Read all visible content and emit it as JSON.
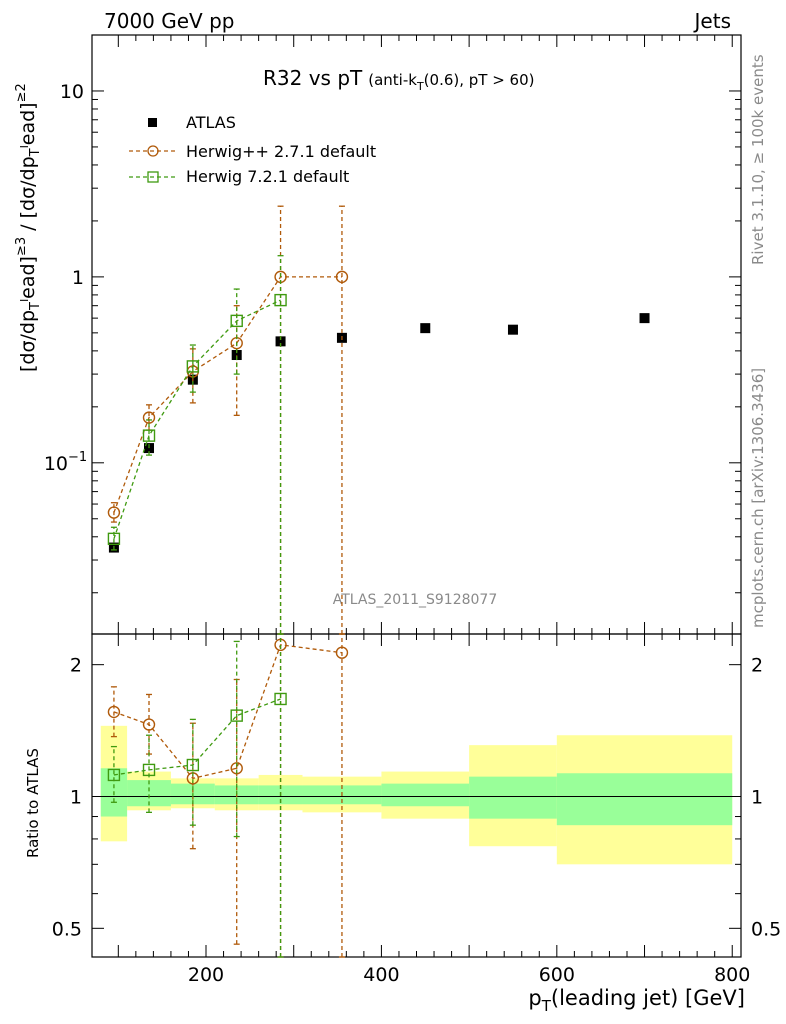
{
  "header": {
    "left": "7000 GeV pp",
    "right": "Jets"
  },
  "title": {
    "main": "R32 vs pT",
    "sub_prefix": "(anti-k",
    "sub_sub": "T",
    "sub_suffix": "(0.6), pT > 60)"
  },
  "side_labels": {
    "rivet": "Rivet 3.1.10, ≥ 100k events",
    "mcplots": "mcplots.cern.ch [arXiv:1306.3436]"
  },
  "analysis_id": "ATLAS_2011_S9128077",
  "ylabel_top": "[dσ/dp_Tˡead]^≥3 / [dσ/dp_Tˡead]^≥2",
  "ylabel_bottom": "Ratio to ATLAS",
  "xlabel": {
    "main": "p",
    "sub": "T",
    "suffix": "(leading jet) [GeV]"
  },
  "colors": {
    "atlas": "#000000",
    "herwigpp": "#b05a0a",
    "herwig7": "#3f9a10",
    "band_inner": "#99ff99",
    "band_outer": "#ffff99"
  },
  "chart_data": [
    {
      "type": "scatter",
      "panel": "main",
      "xlim": [
        70,
        810
      ],
      "ylim": [
        0.012,
        20
      ],
      "yscale": "log",
      "yticks": [
        {
          "v": 0.1,
          "base": "10",
          "exp": "−1"
        },
        {
          "v": 1,
          "label": "1"
        },
        {
          "v": 10,
          "label": "10"
        }
      ],
      "series": [
        {
          "name": "ATLAS",
          "style": "square-filled",
          "x": [
            95,
            135,
            185,
            235,
            285,
            355,
            450,
            550,
            700
          ],
          "xlo": [
            80,
            110,
            160,
            210,
            260,
            310,
            400,
            500,
            600
          ],
          "xhi": [
            110,
            160,
            210,
            260,
            310,
            400,
            500,
            600,
            800
          ],
          "y": [
            0.035,
            0.12,
            0.28,
            0.38,
            0.45,
            0.47,
            0.53,
            0.52,
            0.6
          ]
        },
        {
          "name": "Herwig++ 2.7.1 default",
          "style": "circle-open",
          "x": [
            95,
            135,
            185,
            235,
            285,
            355
          ],
          "y": [
            0.054,
            0.175,
            0.31,
            0.44,
            1.0,
            1.0
          ],
          "ylo": [
            0.048,
            0.15,
            0.21,
            0.18,
            0.0005,
            0.0005
          ],
          "yhi": [
            0.061,
            0.205,
            0.41,
            0.7,
            2.4,
            2.4
          ]
        },
        {
          "name": "Herwig 7.2.1 default",
          "style": "square-open",
          "x": [
            95,
            135,
            185,
            235,
            285
          ],
          "y": [
            0.039,
            0.14,
            0.33,
            0.58,
            0.75
          ],
          "ylo": [
            0.034,
            0.11,
            0.24,
            0.3,
            0.0005
          ],
          "yhi": [
            0.045,
            0.17,
            0.43,
            0.86,
            1.3
          ]
        }
      ]
    },
    {
      "type": "scatter",
      "panel": "ratio",
      "xlim": [
        70,
        810
      ],
      "ylim": [
        0.43,
        2.35
      ],
      "yscale": "log",
      "yticks": [
        0.5,
        1,
        2
      ],
      "xticks": [
        200,
        400,
        600,
        800
      ],
      "bands": [
        {
          "xlo": 80,
          "xhi": 110,
          "inner": [
            0.9,
            1.16
          ],
          "outer": [
            0.79,
            1.45
          ]
        },
        {
          "xlo": 110,
          "xhi": 160,
          "inner": [
            0.95,
            1.09
          ],
          "outer": [
            0.93,
            1.14
          ]
        },
        {
          "xlo": 160,
          "xhi": 210,
          "inner": [
            0.96,
            1.07
          ],
          "outer": [
            0.94,
            1.1
          ]
        },
        {
          "xlo": 210,
          "xhi": 260,
          "inner": [
            0.96,
            1.06
          ],
          "outer": [
            0.93,
            1.1
          ]
        },
        {
          "xlo": 260,
          "xhi": 310,
          "inner": [
            0.96,
            1.06
          ],
          "outer": [
            0.93,
            1.12
          ]
        },
        {
          "xlo": 310,
          "xhi": 400,
          "inner": [
            0.96,
            1.06
          ],
          "outer": [
            0.92,
            1.11
          ]
        },
        {
          "xlo": 400,
          "xhi": 500,
          "inner": [
            0.95,
            1.07
          ],
          "outer": [
            0.89,
            1.14
          ]
        },
        {
          "xlo": 500,
          "xhi": 600,
          "inner": [
            0.89,
            1.11
          ],
          "outer": [
            0.77,
            1.31
          ]
        },
        {
          "xlo": 600,
          "xhi": 800,
          "inner": [
            0.86,
            1.13
          ],
          "outer": [
            0.7,
            1.38
          ]
        }
      ],
      "series": [
        {
          "name": "Herwig++ 2.7.1 default",
          "style": "circle-open",
          "x": [
            95,
            135,
            185,
            235,
            285,
            355
          ],
          "y": [
            1.56,
            1.46,
            1.1,
            1.16,
            2.22,
            2.13
          ],
          "ylo": [
            1.37,
            1.25,
            0.76,
            0.46,
            0.4,
            0.4
          ],
          "yhi": [
            1.78,
            1.71,
            1.47,
            1.85,
            2.4,
            2.4
          ]
        },
        {
          "name": "Herwig 7.2.1 default",
          "style": "square-open",
          "x": [
            95,
            135,
            185,
            235,
            285
          ],
          "y": [
            1.12,
            1.15,
            1.18,
            1.53,
            1.67
          ],
          "ylo": [
            0.97,
            0.92,
            0.86,
            0.81,
            0.4
          ],
          "yhi": [
            1.3,
            1.38,
            1.5,
            2.26,
            2.4
          ]
        }
      ]
    }
  ]
}
